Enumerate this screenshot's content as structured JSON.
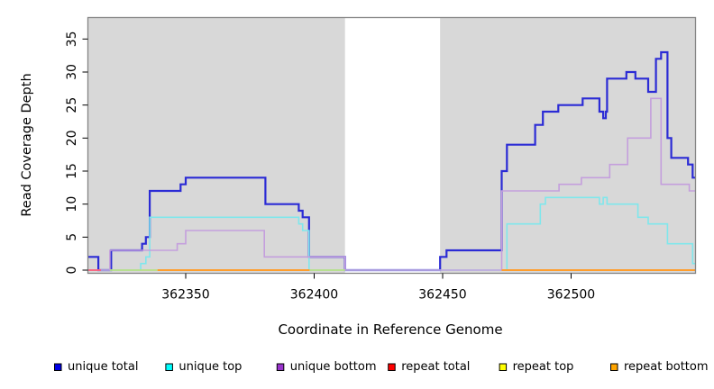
{
  "chart_data": {
    "type": "step-line",
    "title": "",
    "xlabel": "Coordinate in Reference Genome",
    "ylabel": "Read Coverage Depth",
    "x_ticks": [
      362350,
      362400,
      362450,
      362500
    ],
    "y_ticks": [
      0,
      5,
      10,
      15,
      20,
      25,
      30,
      35
    ],
    "xlim": [
      362312,
      362548
    ],
    "ylim": [
      0,
      38
    ],
    "grid": false,
    "legend_position": "bottom-horizontal",
    "background": "#d8d8d8",
    "border_color": "#858585",
    "gap_region": {
      "from": 362412,
      "to": 362449,
      "color": "#ffffff"
    },
    "series": [
      {
        "label": "unique total",
        "legend_color": "#0000e6",
        "plot_color": "#2b2bd5",
        "width": 2.2,
        "segments": [
          [
            [
              362312,
              2
            ],
            [
              362316,
              2
            ],
            [
              362316,
              0
            ],
            [
              362321,
              0
            ],
            [
              362321,
              3
            ],
            [
              362333,
              3
            ],
            [
              362333,
              4
            ],
            [
              362334.5,
              4
            ],
            [
              362334.5,
              5
            ],
            [
              362336,
              5
            ],
            [
              362336,
              12
            ],
            [
              362348,
              12
            ],
            [
              362348,
              13
            ],
            [
              362350,
              13
            ],
            [
              362350,
              14
            ],
            [
              362381,
              14
            ],
            [
              362381,
              10
            ],
            [
              362394,
              10
            ],
            [
              362394,
              9
            ],
            [
              362395.5,
              9
            ],
            [
              362395.5,
              8
            ],
            [
              362398,
              8
            ],
            [
              362398,
              2
            ],
            [
              362412,
              2
            ],
            [
              362412,
              0
            ],
            [
              362449,
              0
            ],
            [
              362449,
              2
            ],
            [
              362451.5,
              2
            ],
            [
              362451.5,
              3
            ],
            [
              362473,
              3
            ],
            [
              362473,
              15
            ],
            [
              362475,
              15
            ],
            [
              362475,
              19
            ],
            [
              362486,
              19
            ],
            [
              362486,
              22
            ],
            [
              362489,
              22
            ],
            [
              362489,
              24
            ],
            [
              362495,
              24
            ],
            [
              362495,
              25
            ],
            [
              362504.5,
              25
            ],
            [
              362504.5,
              26
            ],
            [
              362511,
              26
            ],
            [
              362511,
              24
            ],
            [
              362512.5,
              24
            ],
            [
              362512.5,
              23
            ],
            [
              362513.5,
              23
            ],
            [
              362513.5,
              24
            ],
            [
              362514,
              24
            ],
            [
              362514,
              29
            ],
            [
              362521.5,
              29
            ],
            [
              362521.5,
              30
            ],
            [
              362525,
              30
            ],
            [
              362525,
              29
            ],
            [
              362530,
              29
            ],
            [
              362530,
              27
            ],
            [
              362533,
              27
            ],
            [
              362533,
              32
            ],
            [
              362535,
              32
            ],
            [
              362535,
              33
            ],
            [
              362537.5,
              33
            ],
            [
              362537.5,
              20
            ],
            [
              362539,
              20
            ],
            [
              362539,
              17
            ],
            [
              362545.5,
              17
            ],
            [
              362545.5,
              16
            ],
            [
              362547.3,
              16
            ],
            [
              362547.3,
              14
            ],
            [
              362548.4,
              14
            ]
          ]
        ]
      },
      {
        "label": "unique top",
        "legend_color": "#00ffff",
        "plot_color": "#7fe7ec",
        "width": 1.6,
        "segments": [
          [
            [
              362312,
              0
            ],
            [
              362332.5,
              0
            ],
            [
              362332.5,
              1
            ],
            [
              362334.5,
              1
            ],
            [
              362334.5,
              2
            ],
            [
              362336,
              2
            ],
            [
              362336,
              8
            ],
            [
              362394,
              8
            ],
            [
              362394,
              7
            ],
            [
              362395.5,
              7
            ],
            [
              362395.5,
              6
            ],
            [
              362398,
              6
            ],
            [
              362398,
              0
            ],
            [
              362475,
              0
            ],
            [
              362475,
              7
            ],
            [
              362488,
              7
            ],
            [
              362488,
              10
            ],
            [
              362490,
              10
            ],
            [
              362490,
              11
            ],
            [
              362511,
              11
            ],
            [
              362511,
              10
            ],
            [
              362512.5,
              10
            ],
            [
              362512.5,
              11
            ],
            [
              362514,
              11
            ],
            [
              362514,
              10
            ],
            [
              362526,
              10
            ],
            [
              362526,
              8
            ],
            [
              362530,
              8
            ],
            [
              362530,
              7
            ],
            [
              362537.5,
              7
            ],
            [
              362537.5,
              4
            ],
            [
              362547.3,
              4
            ],
            [
              362547.3,
              1
            ],
            [
              362548.4,
              1
            ]
          ]
        ]
      },
      {
        "label": "unique bottom",
        "legend_color": "#9933cc",
        "plot_color": "#c49fdd",
        "width": 1.6,
        "segments": [
          [
            [
              362312,
              0
            ],
            [
              362320.5,
              0
            ],
            [
              362320.5,
              3
            ],
            [
              362346.7,
              3
            ],
            [
              362346.7,
              4
            ],
            [
              362350,
              4
            ],
            [
              362350,
              6
            ],
            [
              362380.6,
              6
            ],
            [
              362380.6,
              2
            ],
            [
              362412,
              2
            ],
            [
              362412,
              0
            ],
            [
              362473,
              0
            ],
            [
              362473,
              12
            ],
            [
              362495.3,
              12
            ],
            [
              362495.3,
              13
            ],
            [
              362504,
              13
            ],
            [
              362504,
              14
            ],
            [
              362515,
              14
            ],
            [
              362515,
              16
            ],
            [
              362522,
              16
            ],
            [
              362522,
              20
            ],
            [
              362531,
              20
            ],
            [
              362531,
              26
            ],
            [
              362535,
              26
            ],
            [
              362535,
              13
            ],
            [
              362546,
              13
            ],
            [
              362546,
              12
            ],
            [
              362548.4,
              12
            ]
          ]
        ]
      },
      {
        "label": "repeat total",
        "legend_color": "#ff0000",
        "plot_color": "#ff5f7a",
        "width": 1.8,
        "segments": [
          [
            [
              362312,
              0
            ],
            [
              362317,
              0
            ]
          ]
        ]
      },
      {
        "label": "repeat top",
        "legend_color": "#ffff00",
        "plot_color": "#b9e084",
        "width": 1.8,
        "segments": [
          [
            [
              362320.5,
              0
            ],
            [
              362339,
              0
            ]
          ],
          [
            [
              362398,
              0
            ],
            [
              362412,
              0
            ]
          ]
        ]
      },
      {
        "label": "repeat bottom",
        "legend_color": "#ffa500",
        "plot_color": "#ff9d2b",
        "width": 2.0,
        "segments": [
          [
            [
              362339,
              0
            ],
            [
              362398.2,
              0
            ]
          ],
          [
            [
              362473,
              0
            ],
            [
              362548.4,
              0
            ]
          ]
        ]
      }
    ]
  }
}
